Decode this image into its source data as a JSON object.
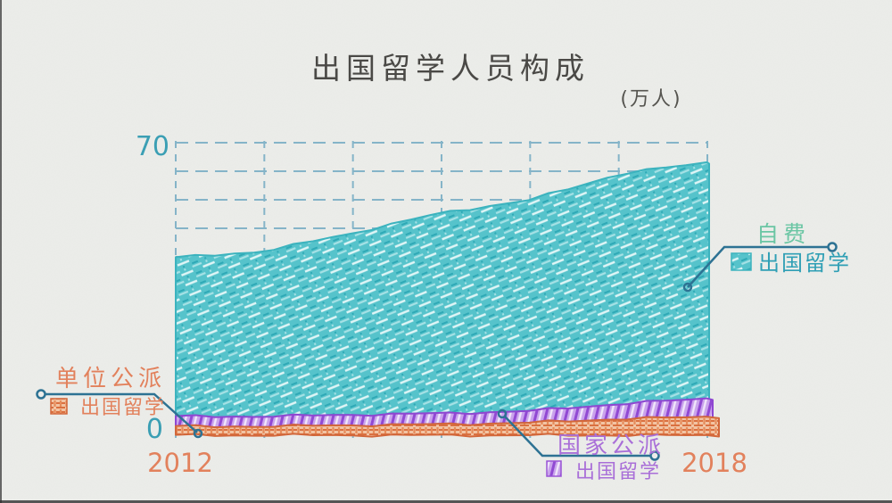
{
  "title": "出国留学人员构成",
  "unit_label": "(万人)",
  "y_axis": {
    "top_label": "70",
    "bottom_label": "0"
  },
  "x_axis": {
    "start_label": "2012",
    "end_label": "2018"
  },
  "legends": {
    "self_funded": {
      "line1": "自费",
      "line2": "出国留学"
    },
    "state_sponsored": {
      "line1": "国家公派",
      "line2": "出国留学"
    },
    "employer_sponsored": {
      "line1": "单位公派",
      "line2": "出国留学"
    }
  },
  "colors": {
    "paper": "#ECEDEA",
    "teal_area": "#4FBFC8",
    "purple_area": "#A76EDA",
    "orange_area": "#E07A4C",
    "teal_text": "#3B9FB4",
    "green_text": "#6BC6A4",
    "orange_text": "#E2815C",
    "purple_text": "#A96FD8",
    "title_text": "#4A4946",
    "callout_line": "#2D7293",
    "grid_line": "#74ABC3"
  },
  "chart_data": {
    "type": "area",
    "stacked": true,
    "title": "出国留学人员构成",
    "unit": "万人",
    "categories": [
      2012,
      2013,
      2014,
      2015,
      2016,
      2017,
      2018
    ],
    "series": [
      {
        "key": "self_funded",
        "name": "自费出国留学",
        "color": "#3CB3BE",
        "values": [
          38.0,
          39.5,
          43.5,
          48.0,
          50.5,
          55.0,
          56.5
        ]
      },
      {
        "key": "state_sponsored",
        "name": "国家公派出国留学",
        "color": "#8F47D1",
        "values": [
          2.4,
          2.4,
          2.5,
          2.6,
          2.8,
          3.6,
          4.4
        ]
      },
      {
        "key": "employer_sponsored",
        "name": "单位公派出国留学",
        "color": "#D2673A",
        "values": [
          2.1,
          2.1,
          2.4,
          2.6,
          3.0,
          3.9,
          4.4
        ]
      }
    ],
    "order_bottom_to_top": [
      "employer_sponsored",
      "state_sponsored",
      "self_funded"
    ],
    "ylim": [
      0,
      70
    ],
    "y_ticks_labeled": [
      0,
      70
    ],
    "x_ticks_labeled": [
      2012,
      2018
    ],
    "grid": true,
    "legend_position": "around-plot"
  }
}
